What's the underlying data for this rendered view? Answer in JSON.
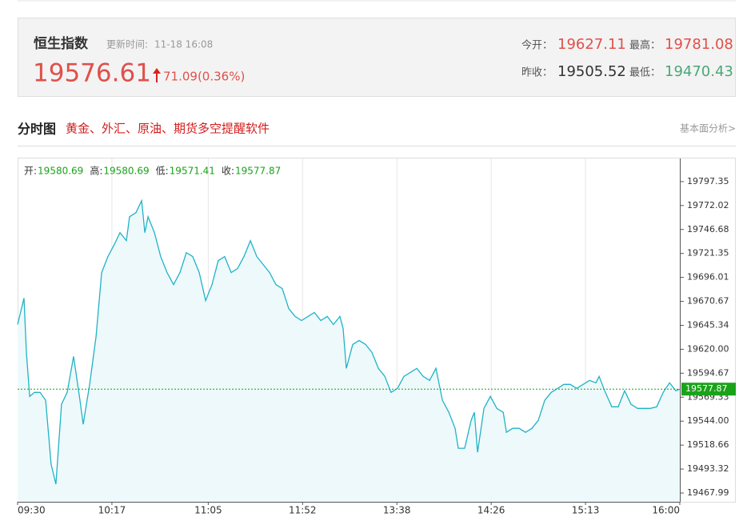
{
  "header": {
    "name": "恒生指数",
    "update_label": "更新时间:",
    "update_time": "11-18 16:08",
    "price": 19576.61,
    "change": "71.09(0.36%)",
    "open_label": "今开：",
    "open": 19627.11,
    "high_label": "最高：",
    "high": 19781.08,
    "prev_close_label": "昨收：",
    "prev_close": 19505.52,
    "low_label": "最低：",
    "low": 19470.43
  },
  "section": {
    "title": "分时图",
    "promo": "黄金、外汇、原油、期货多空提醒软件",
    "link": "基本面分析>"
  },
  "chart_data": {
    "type": "line",
    "color": "#1fb3c6",
    "fill_color": "#eef9fb",
    "grid": "x",
    "marker_color": "#19a319",
    "ohlc": [
      {
        "label": "开:",
        "value": 19580.69
      },
      {
        "label": "高:",
        "value": 19580.69
      },
      {
        "label": "低:",
        "value": 19571.41
      },
      {
        "label": "收:",
        "value": 19577.87
      }
    ],
    "xlim": [
      0,
      330
    ],
    "xticks": [
      {
        "value": 0,
        "label": "09:30"
      },
      {
        "value": 47,
        "label": "10:17"
      },
      {
        "value": 95,
        "label": "11:05"
      },
      {
        "value": 142,
        "label": "11:52"
      },
      {
        "value": 189,
        "label": "13:38"
      },
      {
        "value": 236,
        "label": "14:26"
      },
      {
        "value": 283,
        "label": "15:13"
      },
      {
        "value": 330,
        "label": "16:00"
      }
    ],
    "ylim": [
      19458.7,
      19821.8
    ],
    "yticks": [
      19797.35,
      19772.02,
      19746.68,
      19721.35,
      19696.01,
      19670.67,
      19645.34,
      {
        "value": 19620,
        "label": "19620.00"
      },
      19594.67,
      19569.33,
      {
        "value": 19544,
        "label": "19544.00"
      },
      19518.66,
      19493.32,
      19467.99
    ],
    "x": [
      0,
      3.2,
      4.4,
      6.0,
      8.4,
      11.2,
      14.0,
      16.7,
      19.1,
      21.9,
      24.7,
      27.9,
      31.1,
      32.7,
      35.9,
      39.1,
      41.9,
      45.0,
      48.2,
      51.0,
      54.2,
      55.8,
      59.0,
      61.8,
      63.4,
      65.0,
      68.2,
      71.3,
      74.5,
      77.7,
      80.9,
      84.1,
      87.3,
      90.5,
      93.7,
      96.9,
      100.0,
      103.2,
      106.4,
      109.6,
      112.8,
      116.0,
      119.2,
      122.4,
      125.6,
      128.7,
      131.9,
      135.1,
      138.3,
      141.5,
      144.7,
      147.9,
      151.1,
      154.3,
      157.4,
      160.6,
      162.2,
      163.8,
      167.0,
      170.2,
      173.4,
      176.6,
      179.8,
      183.0,
      186.1,
      189.3,
      192.5,
      195.7,
      198.9,
      202.1,
      205.3,
      208.5,
      211.7,
      214.9,
      218.0,
      219.6,
      222.8,
      226.0,
      227.6,
      229.2,
      232.4,
      235.6,
      238.8,
      242.0,
      243.6,
      246.7,
      249.9,
      253.1,
      256.3,
      259.5,
      262.7,
      265.9,
      269.1,
      272.2,
      275.4,
      278.6,
      281.8,
      285.0,
      288.2,
      289.8,
      292.9,
      296.1,
      299.3,
      302.5,
      305.7,
      308.9,
      312.1,
      315.3,
      318.5,
      321.7,
      324.9,
      328.0,
      330
    ],
    "values": [
      19646.2,
      19674.1,
      19616.6,
      19570.2,
      19574.4,
      19574.4,
      19566.0,
      19498.4,
      19477.3,
      19561.8,
      19574.4,
      19612.4,
      19566.0,
      19540.6,
      19582.9,
      19633.5,
      19701.1,
      19718.0,
      19730.7,
      19743.3,
      19734.9,
      19760.2,
      19764.5,
      19777.1,
      19743.3,
      19760.2,
      19743.3,
      19718.0,
      19701.1,
      19688.4,
      19701.1,
      19722.2,
      19718.0,
      19701.1,
      19671.5,
      19688.4,
      19713.8,
      19718.0,
      19701.1,
      19705.3,
      19718.0,
      19734.9,
      19718.0,
      19709.6,
      19701.1,
      19688.4,
      19684.2,
      19663.1,
      19654.7,
      19650.4,
      19654.7,
      19658.9,
      19650.4,
      19654.7,
      19646.2,
      19654.7,
      19642.0,
      19599.8,
      19625.1,
      19629.3,
      19625.1,
      19616.6,
      19599.8,
      19591.3,
      19574.4,
      19578.6,
      19591.3,
      19595.5,
      19599.8,
      19591.3,
      19587.1,
      19599.8,
      19566.0,
      19553.3,
      19536.4,
      19515.3,
      19515.3,
      19544.9,
      19553.3,
      19511.1,
      19557.5,
      19570.2,
      19557.5,
      19553.3,
      19532.2,
      19536.4,
      19536.4,
      19532.2,
      19536.4,
      19544.9,
      19566.0,
      19574.4,
      19578.6,
      19582.9,
      19582.9,
      19578.6,
      19582.9,
      19587.1,
      19584.6,
      19591.3,
      19574.4,
      19559.2,
      19559.2,
      19576.1,
      19561.8,
      19557.5,
      19557.5,
      19557.5,
      19559.2,
      19574.4,
      19584.6,
      19576.1,
      19577.87
    ]
  }
}
